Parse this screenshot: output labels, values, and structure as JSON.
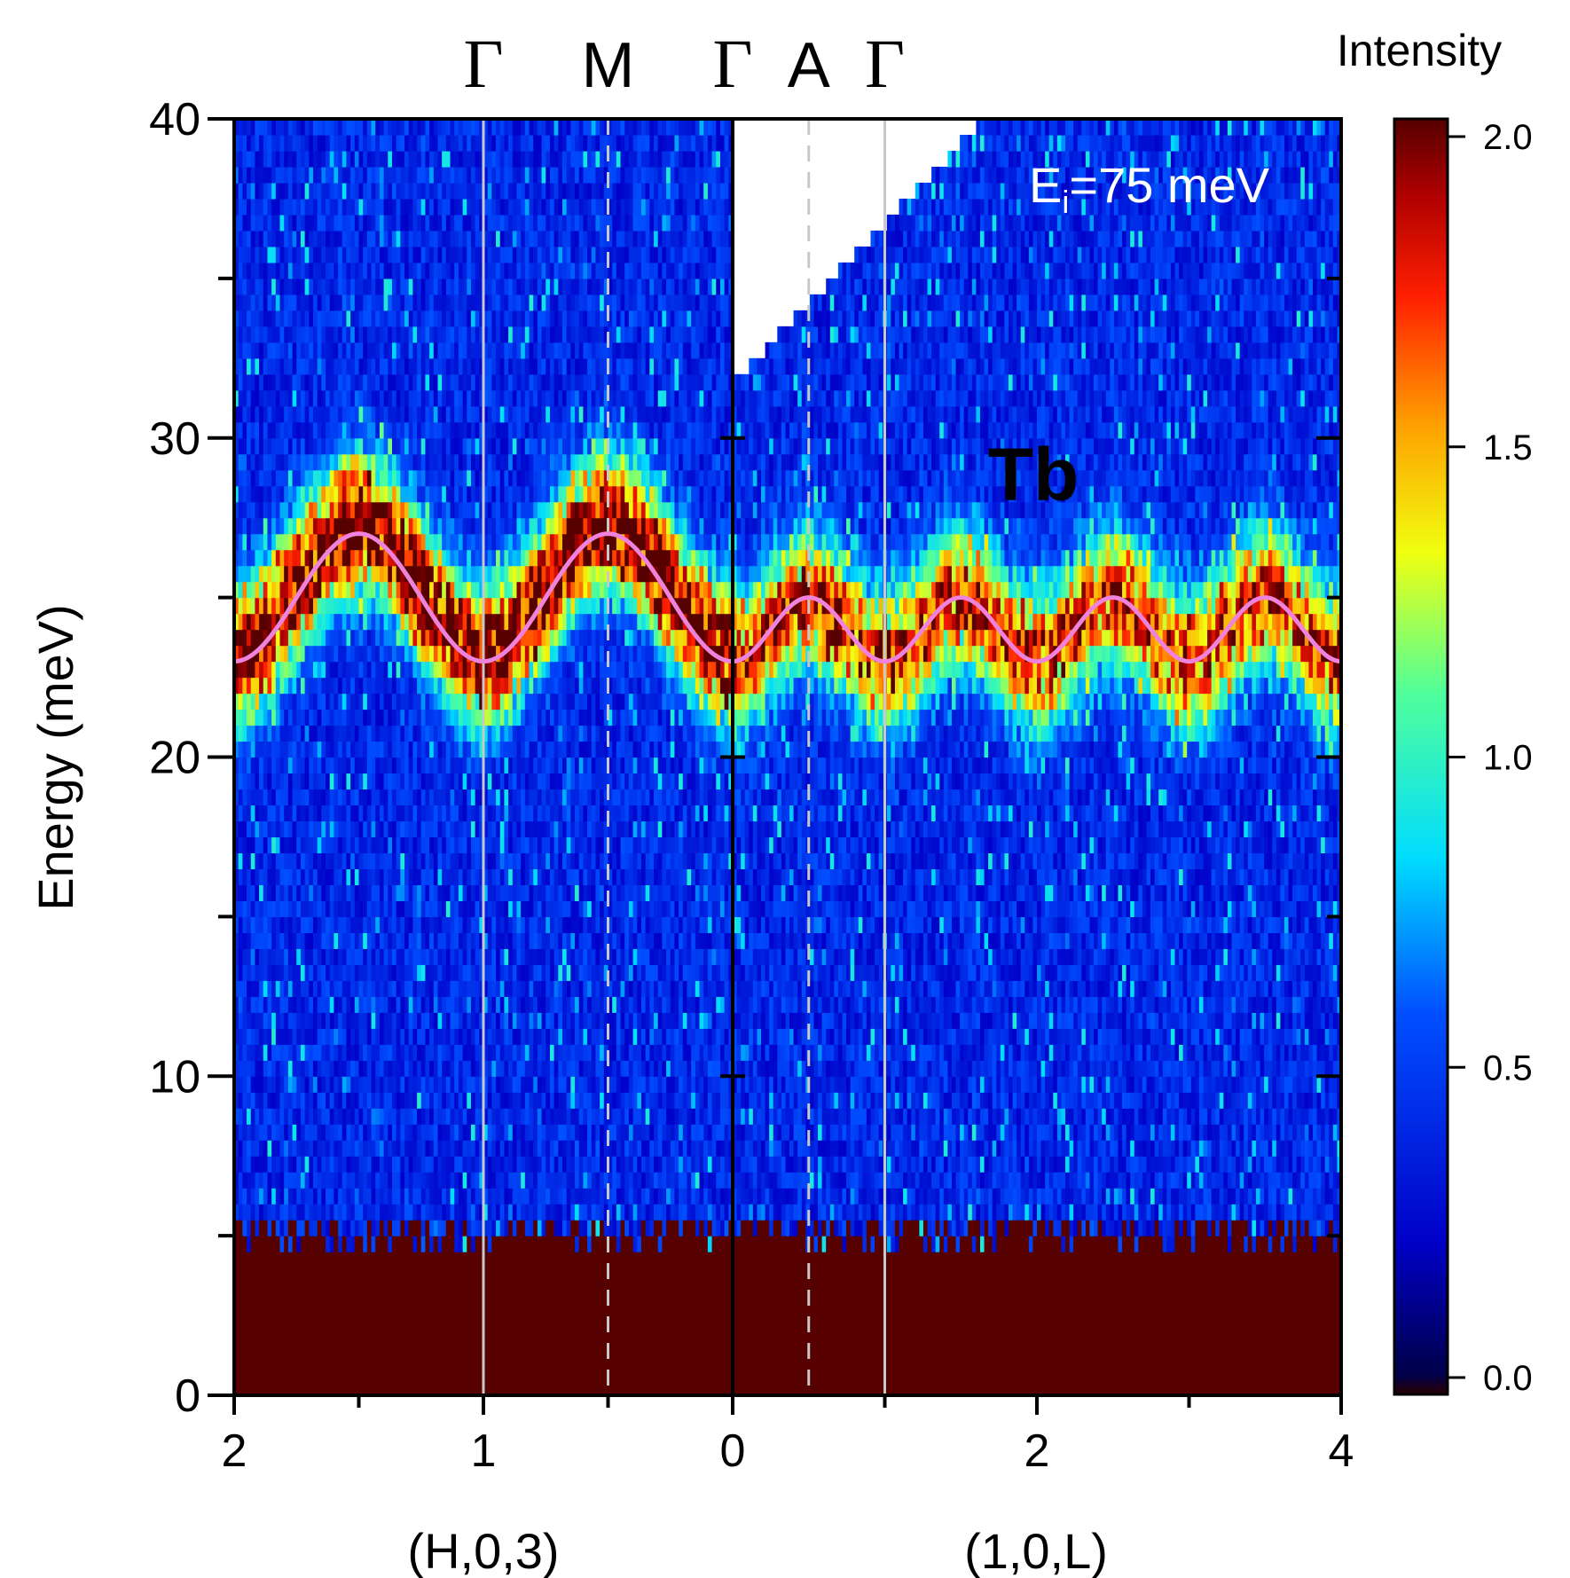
{
  "chart_data": {
    "type": "heatmap",
    "title": "Tb",
    "annotation": {
      "prefix": "E",
      "subscript": "i",
      "suffix": "=75 meV"
    },
    "ylabel": "Energy (meV)",
    "ylim": [
      0,
      40
    ],
    "yticks": [
      "0",
      "10",
      "20",
      "30",
      "40"
    ],
    "panels": [
      {
        "xlabel": "(H,0,3)",
        "xrange": [
          2,
          0
        ],
        "xticks": [
          "2",
          "1",
          "0"
        ],
        "symmetry_points": [
          {
            "label": "Γ",
            "x": 1,
            "line": "solid"
          },
          {
            "label": "M",
            "x": 0.5,
            "line": "dashed"
          },
          {
            "label": "Γ",
            "x": 0,
            "line": "none"
          }
        ],
        "dispersion_fit": {
          "E_min": 23,
          "E_max": 27,
          "period": 1
        }
      },
      {
        "xlabel": "(1,0,L)",
        "xrange": [
          0,
          4
        ],
        "xticks": [
          "0",
          "2",
          "4"
        ],
        "symmetry_points": [
          {
            "label": "A",
            "x": 0.5,
            "line": "dashed"
          },
          {
            "label": "Γ",
            "x": 1,
            "line": "solid"
          }
        ],
        "dispersion_fit": {
          "E_min": 23,
          "E_max": 25,
          "period": 1
        }
      }
    ],
    "band": {
      "center_meV": 25,
      "width_meV": 3
    },
    "elastic_cutoff_meV": 5,
    "colorbar": {
      "title": "Intensity",
      "range": [
        0.0,
        2.0
      ],
      "ticks": [
        "0.0",
        "0.5",
        "1.0",
        "1.5",
        "2.0"
      ],
      "colormap": "jet"
    },
    "fit_color": "#ee82dc",
    "annotation_color": "#ffffff"
  }
}
